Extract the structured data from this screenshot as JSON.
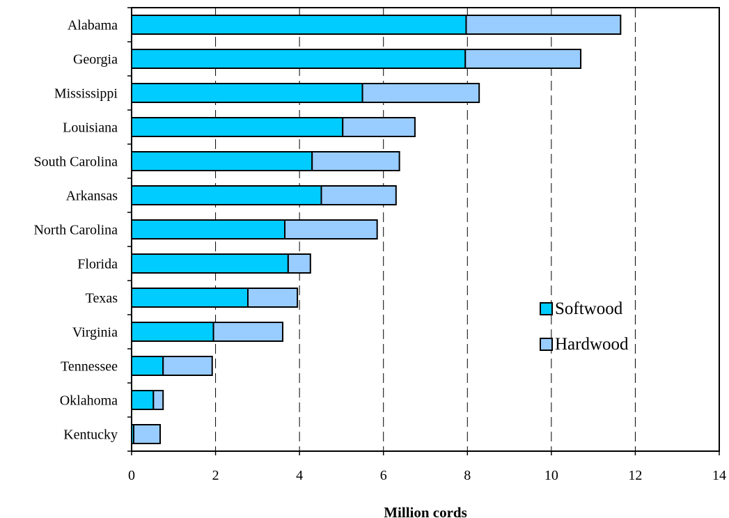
{
  "chart_data": {
    "type": "bar",
    "orientation": "horizontal",
    "stacked": true,
    "categories": [
      "Alabama",
      "Georgia",
      "Mississippi",
      "Louisiana",
      "South Carolina",
      "Arkansas",
      "North Carolina",
      "Florida",
      "Texas",
      "Virginia",
      "Tennessee",
      "Oklahoma",
      "Kentucky"
    ],
    "series": [
      {
        "name": "Softwood",
        "color": "#00CCFF",
        "values": [
          7.97,
          7.95,
          5.5,
          5.03,
          4.3,
          4.52,
          3.65,
          3.73,
          2.77,
          1.95,
          0.75,
          0.52,
          0.05
        ]
      },
      {
        "name": "Hardwood",
        "color": "#99CCFF",
        "values": [
          3.68,
          2.75,
          2.78,
          1.72,
          2.08,
          1.78,
          2.2,
          0.53,
          1.18,
          1.65,
          1.17,
          0.23,
          0.63
        ]
      }
    ],
    "xlabel": "Million cords",
    "xlim": [
      0,
      14
    ],
    "xticks": [
      "0",
      "2",
      "4",
      "6",
      "8",
      "10",
      "12",
      "14"
    ],
    "grid": "vertical dashed",
    "legend_position": "right"
  }
}
